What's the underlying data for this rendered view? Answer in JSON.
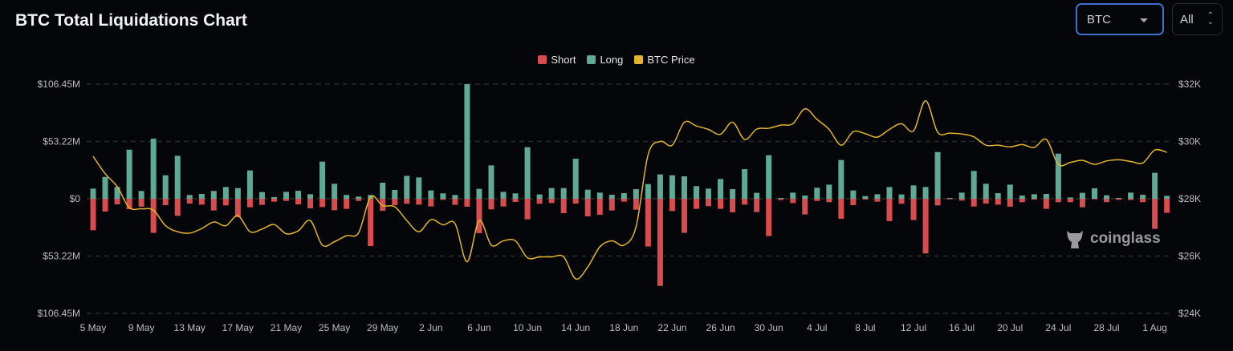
{
  "title": "BTC Total Liquidations Chart",
  "controls": {
    "coin": "BTC",
    "range": "All"
  },
  "watermark": "coinglass",
  "colors": {
    "short": "#d64c4f",
    "long": "#5fa995",
    "price": "#e3b52b",
    "grid": "#2a2c30",
    "accent": "#3f6fd0"
  },
  "chart_data": {
    "type": "bar",
    "title": "BTC Total Liquidations Chart",
    "legend": [
      "Short",
      "Long",
      "BTC Price"
    ],
    "legend_position": "top-center",
    "left_axis": {
      "range": [
        -106.45,
        106.45
      ],
      "unit": "M USD",
      "ticks": [
        "$106.45M",
        "$53.22M",
        "$0",
        "$53.22M",
        "$106.45M"
      ]
    },
    "right_axis": {
      "range": [
        24000,
        32000
      ],
      "ticks": [
        "$32K",
        "$30K",
        "$28K",
        "$26K",
        "$24K"
      ]
    },
    "x_ticks": [
      "5 May",
      "9 May",
      "13 May",
      "17 May",
      "21 May",
      "25 May",
      "29 May",
      "2 Jun",
      "6 Jun",
      "10 Jun",
      "14 Jun",
      "18 Jun",
      "22 Jun",
      "26 Jun",
      "30 Jun",
      "4 Jul",
      "8 Jul",
      "12 Jul",
      "16 Jul",
      "20 Jul",
      "24 Jul",
      "28 Jul",
      "1 Aug"
    ],
    "start_date": "5 May",
    "grid": true,
    "series": [
      {
        "name": "Long",
        "axis": "left",
        "values": [
          9.4,
          20.3,
          10.9,
          45.6,
          7.2,
          55.8,
          21.8,
          39.9,
          3.5,
          4.5,
          7.2,
          10.9,
          9.9,
          26.3,
          6.2,
          1.5,
          6.4,
          7.4,
          4.2,
          34.5,
          13.9,
          3.5,
          2,
          3.5,
          14.9,
          8.2,
          21.3,
          19.8,
          7.7,
          5,
          3.5,
          106.45,
          9.2,
          31,
          6.4,
          5,
          47.9,
          4,
          9.9,
          9.9,
          37.2,
          8.4,
          5.7,
          3.7,
          5.2,
          8.9,
          13.6,
          22.6,
          21.8,
          20.8,
          11.7,
          9.4,
          18.4,
          8.9,
          27.5,
          5.5,
          40.4,
          0.7,
          5.7,
          3,
          10.2,
          13.1,
          36,
          7.7,
          2.5,
          4.2,
          10.9,
          4,
          12.4,
          10.9,
          43.4,
          0.7,
          5.7,
          25.8,
          13.9,
          5.2,
          13.1,
          3,
          4.2,
          4.5,
          41.9,
          1.2,
          5.5,
          9.7,
          3.2,
          0.7,
          5.7,
          3.7,
          24.1,
          2.7
        ]
      },
      {
        "name": "Short",
        "axis": "left",
        "values": [
          29.3,
          11.9,
          5.2,
          9.7,
          7.4,
          31.7,
          6,
          15.9,
          4.5,
          5.5,
          10.9,
          6.2,
          17.1,
          7.9,
          5.7,
          2.7,
          2,
          5.2,
          8.9,
          7.7,
          10.7,
          9.4,
          2,
          44,
          11.2,
          6,
          4.7,
          5.5,
          7.2,
          1,
          5.7,
          7.4,
          32,
          9.9,
          7.2,
          3,
          19.1,
          4.7,
          4,
          13.4,
          4.5,
          16.4,
          14.9,
          10.9,
          2.7,
          10.2,
          44.4,
          81,
          11.4,
          31.7,
          9.4,
          6.9,
          9.4,
          12.6,
          5.5,
          12.4,
          34.7,
          1.2,
          4,
          14.6,
          2,
          3.2,
          18.6,
          6,
          0.7,
          2.7,
          20.8,
          4.7,
          19.8,
          50.8,
          6.2,
          0.5,
          1.7,
          7.2,
          4.5,
          5.5,
          7.4,
          3.2,
          0.7,
          9.4,
          3.2,
          3.2,
          7.9,
          0.5,
          3.2,
          1,
          1.2,
          3.2,
          28,
          13.1
        ]
      },
      {
        "name": "BTC Price",
        "axis": "right",
        "type": "line",
        "values": [
          29480,
          28875,
          28420,
          27690,
          27650,
          27600,
          27060,
          26850,
          26800,
          26960,
          27190,
          27060,
          27410,
          26850,
          26940,
          27100,
          26780,
          26880,
          27240,
          26380,
          26500,
          26710,
          26810,
          28060,
          27760,
          27720,
          27240,
          26850,
          27270,
          27090,
          27130,
          25800,
          27240,
          26380,
          26530,
          26530,
          25940,
          25970,
          25970,
          25970,
          25200,
          25620,
          26320,
          26530,
          26380,
          27020,
          29540,
          30000,
          29870,
          30670,
          30540,
          30420,
          30250,
          30670,
          30070,
          30430,
          30460,
          30570,
          30620,
          31140,
          30770,
          30420,
          29870,
          30340,
          30270,
          30150,
          30420,
          30620,
          30370,
          31420,
          30320,
          30290,
          30260,
          30160,
          29870,
          29870,
          29810,
          29890,
          29790,
          30070,
          29200,
          29270,
          29340,
          29200,
          29320,
          29360,
          29300,
          29250,
          29700,
          29620
        ]
      }
    ]
  }
}
